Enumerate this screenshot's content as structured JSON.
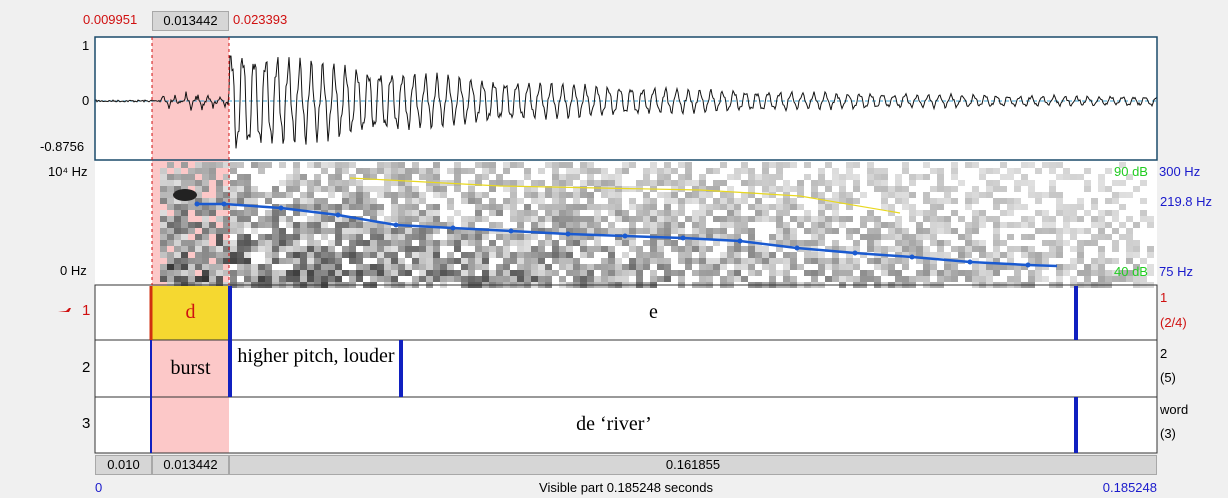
{
  "selection": {
    "start": "0.009951",
    "duration": "0.013442",
    "end": "0.023393"
  },
  "waveform": {
    "max": "1",
    "zero": "0",
    "min": "-0.8756"
  },
  "spectrogram": {
    "freq_top": "10⁴ Hz",
    "freq_bottom": "0 Hz",
    "db_top": "90 dB",
    "pitch_top": "300 Hz",
    "pitch_mid": "219.8 Hz",
    "db_bottom": "40 dB",
    "pitch_bottom": "75 Hz"
  },
  "tiers": [
    {
      "number": "1",
      "name": "1",
      "count": "(2/4)",
      "intervals": [
        "d",
        "e"
      ]
    },
    {
      "number": "2",
      "name": "2",
      "count": "(5)",
      "intervals": [
        "burst",
        "higher pitch, louder"
      ]
    },
    {
      "number": "3",
      "name": "word",
      "count": "(3)",
      "intervals": [
        "de ‘river’"
      ]
    }
  ],
  "time_bar": {
    "left": "0.010",
    "selected": "0.013442",
    "right": "0.161855"
  },
  "footer": {
    "start": "0",
    "visible": "Visible part 0.185248 seconds",
    "end": "0.185248"
  }
}
